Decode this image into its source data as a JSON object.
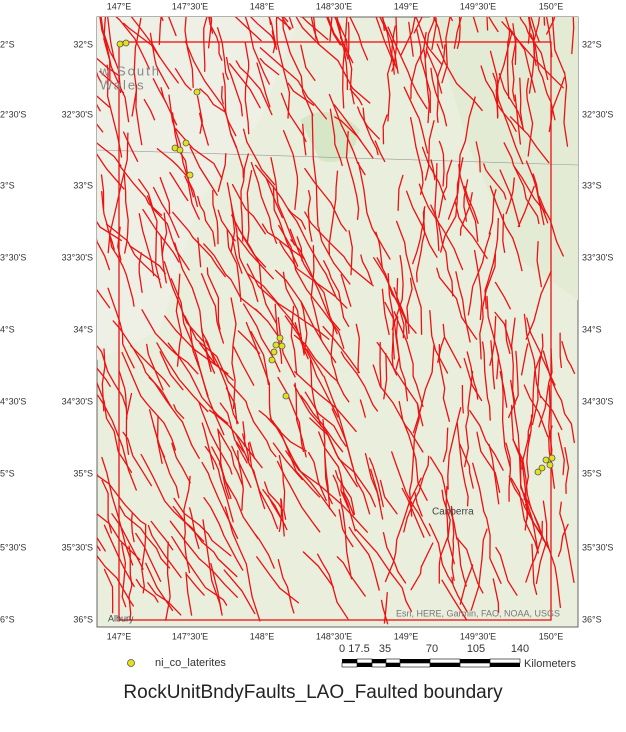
{
  "map": {
    "longitude_labels": [
      "147°E",
      "147°30'E",
      "148°E",
      "148°30'E",
      "149°E",
      "149°30'E",
      "150°E"
    ],
    "latitude_labels": [
      "32°S",
      "32°30'S",
      "33°S",
      "33°30'S",
      "34°S",
      "34°30'S",
      "35°S",
      "35°30'S",
      "36°S"
    ],
    "cut_left_labels": [
      "2°S",
      "2°30'S",
      "3°S",
      "3°30'S",
      "4°S",
      "4°30'S",
      "5°S",
      "5°30'S",
      "6°S"
    ],
    "region_label": [
      "w South",
      "Wales"
    ],
    "places": {
      "canberra": "Canberra",
      "albury": "Albury"
    },
    "attribution": "Esri, HERE, Garmin, FAO, NOAA, USGS"
  },
  "legend": {
    "label": "ni_co_laterites"
  },
  "scale_bar": {
    "labels": [
      "0",
      "17.5",
      "35",
      "70",
      "105",
      "140"
    ],
    "unit": "Kilometers"
  },
  "caption": "RockUnitBndyFaults_LAO_Faulted boundary"
}
